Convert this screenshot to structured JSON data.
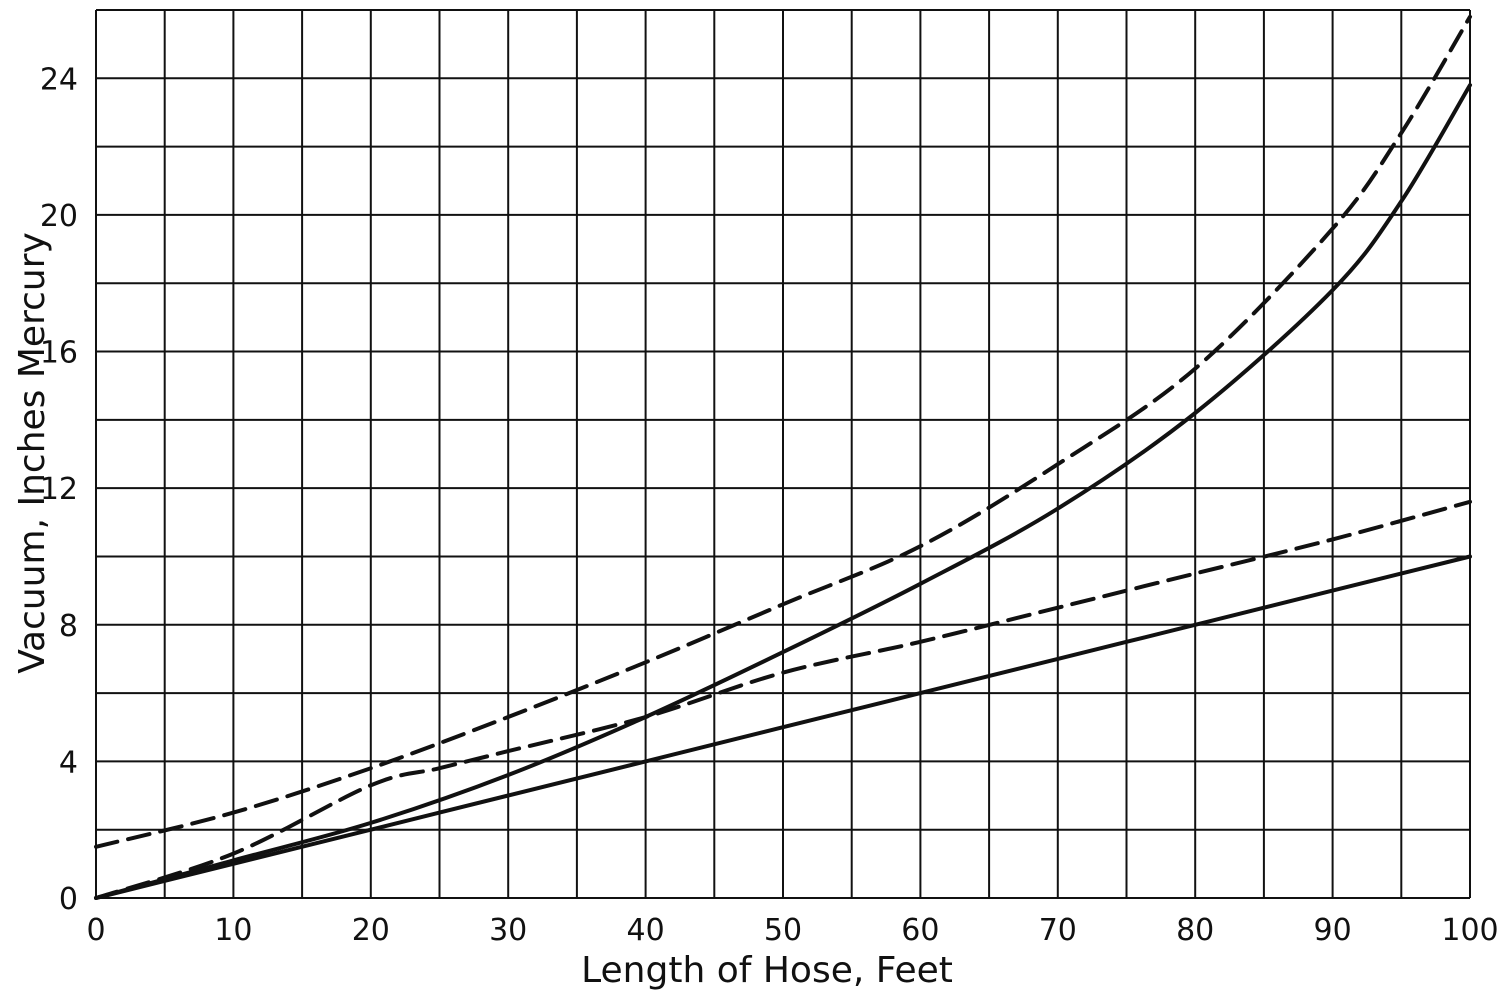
{
  "chart_data": {
    "type": "line",
    "title": "",
    "xlabel": "Length of Hose, Feet",
    "ylabel": "Vacuum, Inches Mercury",
    "xlim": [
      0,
      100
    ],
    "ylim": [
      0,
      26
    ],
    "grid": true,
    "x_gridline_step": 5,
    "y_gridline_step": 2,
    "x_ticks": [
      0,
      10,
      20,
      30,
      40,
      50,
      60,
      70,
      80,
      90,
      100
    ],
    "y_ticks": [
      0,
      4,
      8,
      12,
      16,
      20,
      24
    ],
    "series": [
      {
        "style": "solid",
        "x": [
          0,
          10,
          20,
          30,
          40,
          50,
          60,
          70,
          80,
          90,
          100
        ],
        "y": [
          0,
          1,
          2,
          3,
          4,
          5,
          6,
          7,
          8,
          9,
          10
        ]
      },
      {
        "style": "dashed",
        "x": [
          0,
          10,
          20,
          25,
          30,
          40,
          50,
          60,
          70,
          80,
          90,
          100
        ],
        "y": [
          0,
          1.3,
          3.3,
          3.8,
          4.3,
          5.3,
          6.6,
          7.5,
          8.5,
          9.5,
          10.5,
          11.6
        ]
      },
      {
        "style": "solid",
        "x": [
          0,
          10,
          20,
          30,
          40,
          50,
          60,
          70,
          80,
          90,
          95,
          100
        ],
        "y": [
          0,
          1.1,
          2.2,
          3.6,
          5.3,
          7.2,
          9.2,
          11.4,
          14.2,
          17.8,
          20.4,
          23.8
        ]
      },
      {
        "style": "dashed",
        "x": [
          0,
          10,
          20,
          30,
          40,
          50,
          60,
          70,
          80,
          90,
          95,
          100
        ],
        "y": [
          1.5,
          2.5,
          3.8,
          5.3,
          6.9,
          8.6,
          10.3,
          12.7,
          15.5,
          19.6,
          22.4,
          25.8
        ]
      }
    ]
  }
}
